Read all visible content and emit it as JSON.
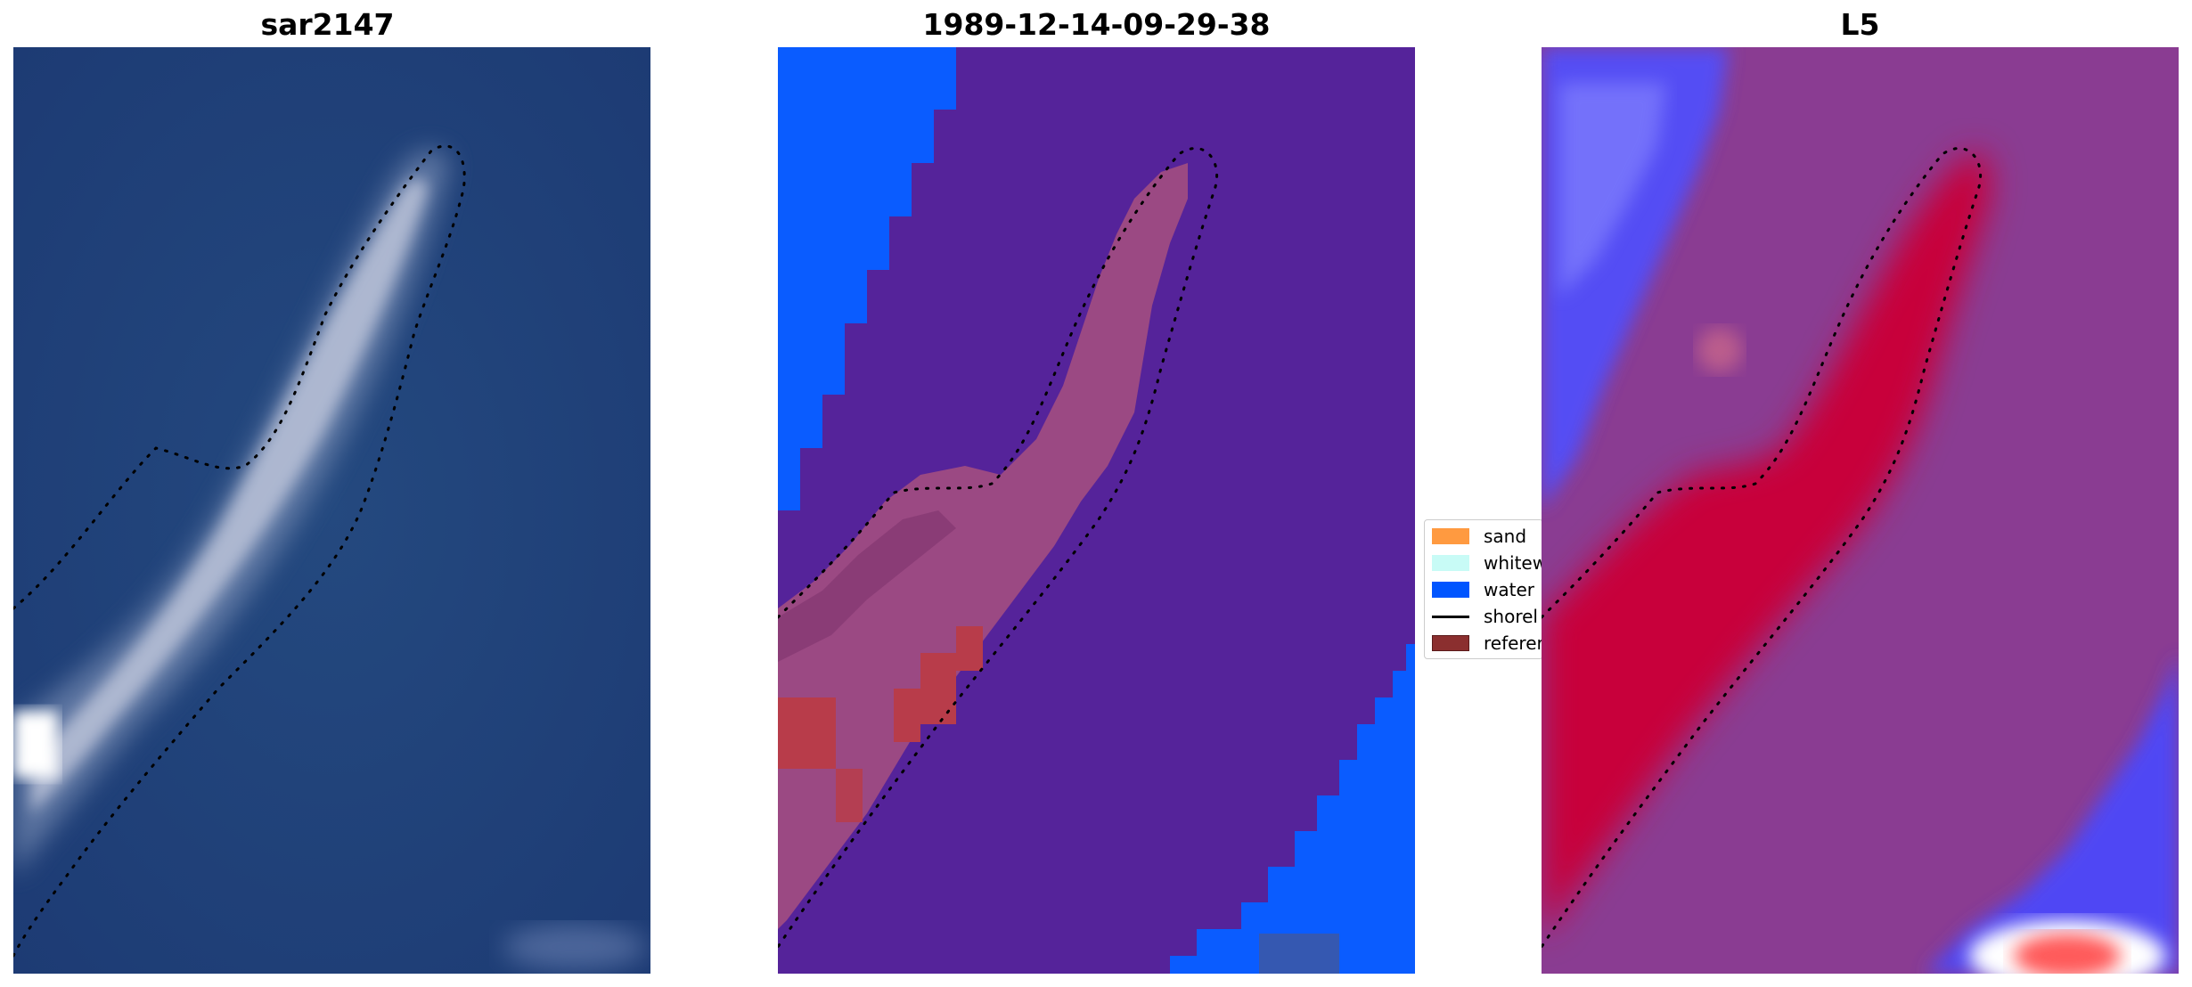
{
  "panels": [
    {
      "title": "sar2147"
    },
    {
      "title": "1989-12-14-09-29-38"
    },
    {
      "title": "L5"
    }
  ],
  "legend": {
    "items": [
      {
        "label": "sand",
        "color": "#ff9a40",
        "kind": "patch"
      },
      {
        "label": "whitew",
        "color": "#c8fbf6",
        "kind": "patch"
      },
      {
        "label": "water",
        "color": "#0055ff",
        "kind": "patch"
      },
      {
        "label": "shorel",
        "color": "#000000",
        "kind": "line"
      },
      {
        "label": "referer",
        "color": "#8b2f2f",
        "kind": "patch"
      }
    ]
  },
  "colors": {
    "rgb_background": "#1f3f7a",
    "sand_spit_rgb": "#c8cde0",
    "classification_purple": "#55239a",
    "classification_water": "#0a5cff",
    "classification_sand_overlay": "#a8507f",
    "classification_red_patches": "#b83c4a",
    "probability_purple": "#8a3c92",
    "probability_red": "#c8003a",
    "probability_blue": "#3d3dff"
  }
}
